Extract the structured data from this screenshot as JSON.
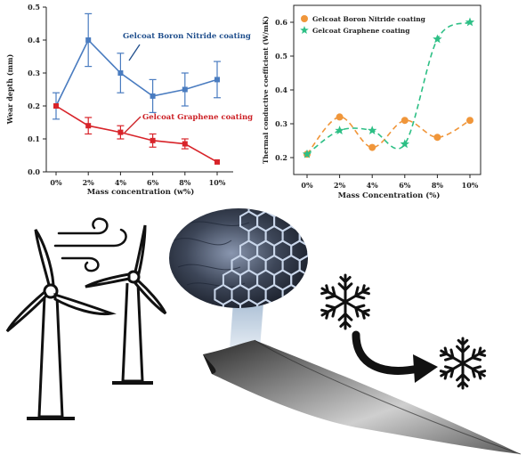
{
  "chart_data": [
    {
      "type": "line",
      "xlabel": "Mass concentration (w%)",
      "ylabel": "Wear depth (mm)",
      "categories": [
        "0%",
        "2%",
        "4%",
        "6%",
        "8%",
        "10%"
      ],
      "ylim": [
        0.0,
        0.5
      ],
      "yticks": [
        "0.0",
        "0.1",
        "0.2",
        "0.3",
        "0.4",
        "0.5"
      ],
      "series": [
        {
          "name": "Gelcoat Boron Nitride coating",
          "color": "#4a7cc0",
          "marker": "square",
          "values": [
            0.2,
            0.4,
            0.3,
            0.23,
            0.25,
            0.28
          ],
          "errors": [
            0.04,
            0.08,
            0.06,
            0.05,
            0.05,
            0.055
          ]
        },
        {
          "name": "Gelcoat Graphene coating",
          "color": "#d8242a",
          "marker": "square",
          "values": [
            0.2,
            0.14,
            0.12,
            0.095,
            0.085,
            0.03
          ],
          "errors": [
            0.0,
            0.025,
            0.02,
            0.02,
            0.015,
            0.0
          ]
        }
      ]
    },
    {
      "type": "scatter",
      "xlabel": "Mass Concentration (%)",
      "ylabel": "Thermal conductive coefficient (W/mK)",
      "categories": [
        "0%",
        "2%",
        "4%",
        "6%",
        "8%",
        "10%"
      ],
      "ylim": [
        0.15,
        0.65
      ],
      "yticks": [
        "0.2",
        "0.3",
        "0.4",
        "0.5",
        "0.6"
      ],
      "legend": "top-left",
      "series": [
        {
          "name": "Gelcoat Boron Nitride coating",
          "color": "#f0963a",
          "marker": "circle",
          "values": [
            0.21,
            0.32,
            0.23,
            0.31,
            0.26,
            0.31
          ]
        },
        {
          "name": "Gelcoat Graphene coating",
          "color": "#2dbf85",
          "marker": "star",
          "values": [
            0.21,
            0.28,
            0.28,
            0.24,
            0.55,
            0.6
          ]
        }
      ]
    }
  ],
  "illustration": {
    "icons": [
      "wind-turbine-icon",
      "wind-gust-icon",
      "graphene-lattice-icon",
      "snowflake-icon",
      "curved-arrow-icon",
      "turbine-blade-icon"
    ]
  }
}
